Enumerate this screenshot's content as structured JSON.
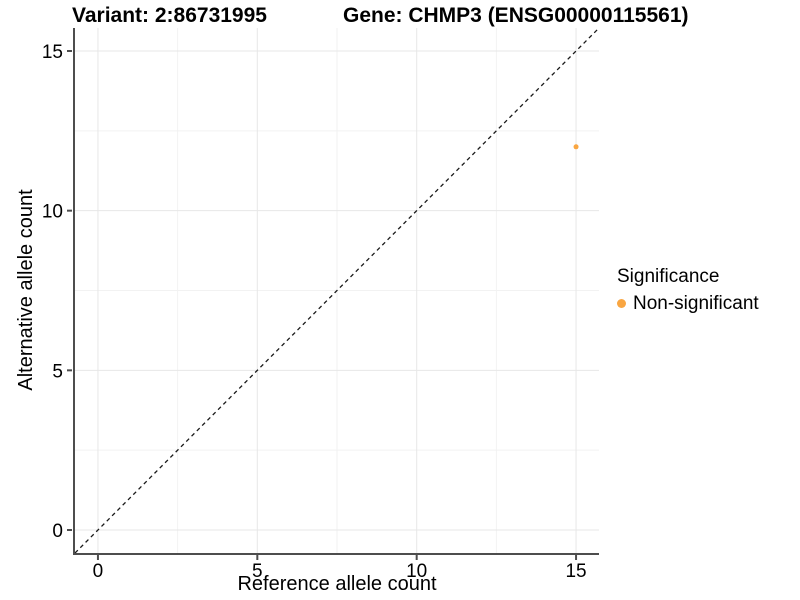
{
  "colors": {
    "point": "#F9A642",
    "grid_major": "#E7E7E7",
    "grid_minor": "#F2F2F2",
    "axis_line": "#4D4D4D",
    "reference_line": "#1A1A1A",
    "text": "#000000",
    "background": "#FFFFFF"
  },
  "chart_data": {
    "type": "scatter",
    "title_left": "Variant: 2:86731995",
    "title_right": "Gene: CHMP3 (ENSG00000115561)",
    "xlabel": "Reference allele count",
    "ylabel": "Alternative allele count",
    "xlim": [
      -0.72,
      15.72
    ],
    "ylim": [
      -0.72,
      15.72
    ],
    "x_ticks": [
      0,
      5,
      10,
      15
    ],
    "x_tick_labels": [
      "0",
      "5",
      "10",
      "15"
    ],
    "x_minor_ticks": [
      2.5,
      7.5,
      12.5
    ],
    "y_ticks": [
      0,
      5,
      10,
      15
    ],
    "y_tick_labels": [
      "0",
      "5",
      "10",
      "15"
    ],
    "y_minor_ticks": [
      2.5,
      7.5,
      12.5
    ],
    "grid": true,
    "legend_title": "Significance",
    "legend_position": "right",
    "reference_line": {
      "slope": 1,
      "intercept": 0,
      "style": "dashed"
    },
    "series": [
      {
        "name": "Non-significant",
        "color": "#F9A642",
        "points": [
          {
            "x": 15,
            "y": 12
          }
        ]
      }
    ]
  }
}
